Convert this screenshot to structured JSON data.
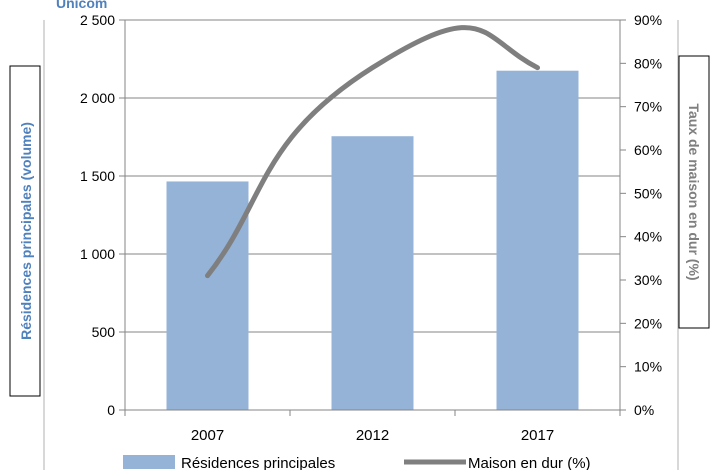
{
  "chart_data": {
    "type": "bar+line",
    "title": "Unicom",
    "categories": [
      "2007",
      "2012",
      "2017"
    ],
    "series": [
      {
        "name": "Résidences principales",
        "type": "bar",
        "axis": "left",
        "values": [
          1465,
          1755,
          2175
        ]
      },
      {
        "name": "Maison en dur (%)",
        "type": "line",
        "axis": "right",
        "values": [
          31,
          79,
          79
        ]
      }
    ],
    "y_left": {
      "label": "Résidences principales (volume)",
      "range": [
        0,
        2500
      ],
      "ticks": [
        0,
        500,
        1000,
        1500,
        2000,
        2500
      ],
      "tick_labels": [
        "0",
        "500",
        "1 000",
        "1 500",
        "2 000",
        "2 500"
      ]
    },
    "y_right": {
      "label": "Taux de maison en dur (%)",
      "range": [
        0,
        90
      ],
      "ticks": [
        0,
        10,
        20,
        30,
        40,
        50,
        60,
        70,
        80,
        90
      ],
      "tick_labels": [
        "0%",
        "10%",
        "20%",
        "30%",
        "40%",
        "50%",
        "60%",
        "70%",
        "80%",
        "90%"
      ]
    },
    "grid": "horizontal",
    "legend": "bottom",
    "colors": {
      "bar": "#95b3d7",
      "line": "#7f7f7f",
      "left_label": "#4f81bd",
      "right_label": "#7f7f7f"
    }
  }
}
